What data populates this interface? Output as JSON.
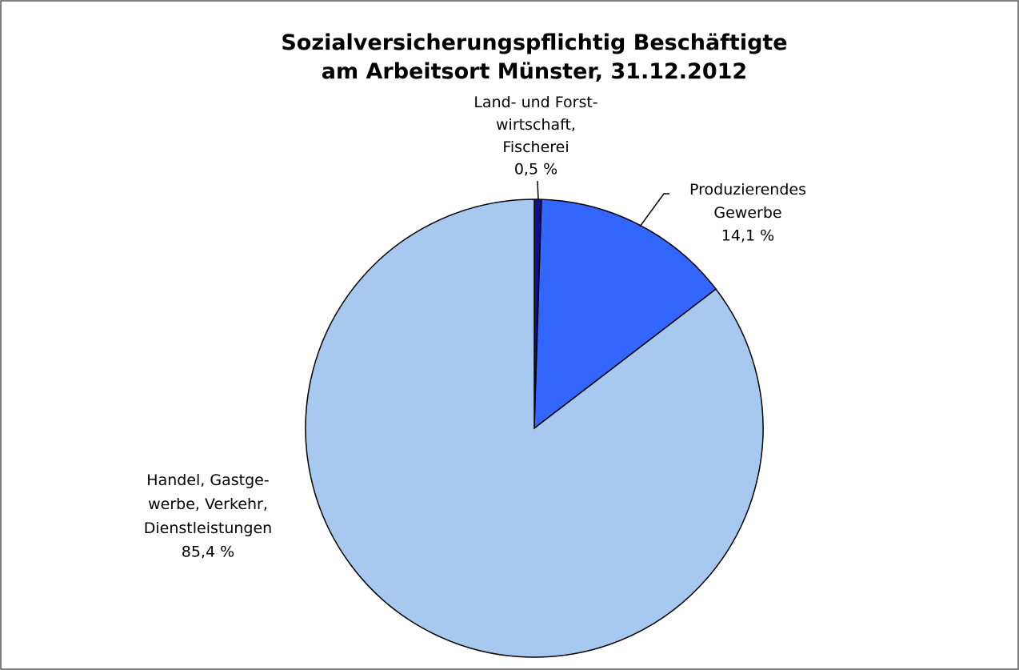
{
  "chart_data": {
    "type": "pie",
    "title": "Sozialversicherungspflichtig Beschäftigte\nam Arbeitsort Münster, 31.12.2012",
    "categories": [
      "Land- und Forst-\nwirtschaft,\nFischerei",
      "Produzierendes\nGewerbe",
      "Handel, Gastge-\nwerbe, Verkehr,\nDienstleistungen"
    ],
    "values": [
      0.5,
      14.1,
      85.4
    ],
    "value_labels": [
      "0,5 %",
      "14,1 %",
      "85,4 %"
    ],
    "colors": [
      "#10108a",
      "#3366ff",
      "#a8c9ef"
    ]
  }
}
